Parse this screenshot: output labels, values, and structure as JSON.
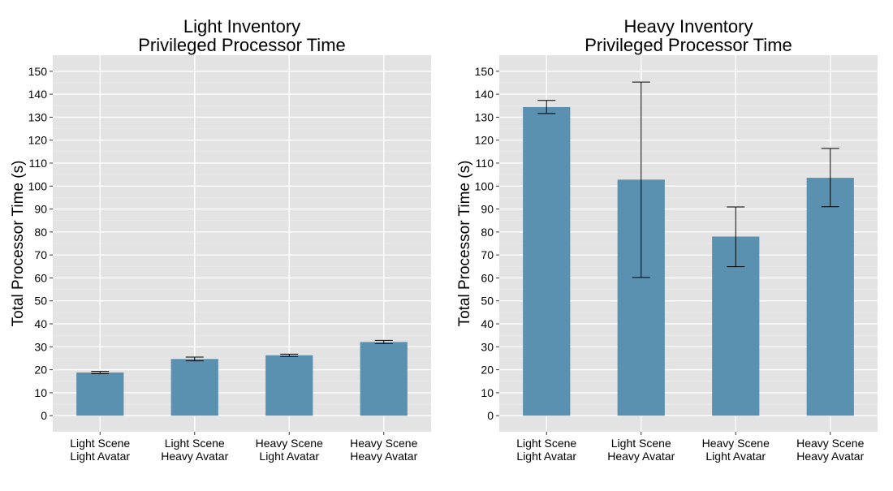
{
  "chart_data": [
    {
      "type": "bar",
      "title": [
        "Light Inventory",
        "Privileged Processor Time"
      ],
      "ylabel": "Total Processor Time (s)",
      "xlabel": "",
      "ylim": [
        -7,
        157
      ],
      "yticks": [
        0,
        10,
        20,
        30,
        40,
        50,
        60,
        70,
        80,
        90,
        100,
        110,
        120,
        130,
        140,
        150
      ],
      "categories": [
        [
          "Light Scene",
          "Light Avatar"
        ],
        [
          "Light Scene",
          "Heavy Avatar"
        ],
        [
          "Heavy Scene",
          "Light Avatar"
        ],
        [
          "Heavy Scene",
          "Heavy Avatar"
        ]
      ],
      "values": [
        18.8,
        24.7,
        26.3,
        32.1
      ],
      "error_low": [
        18.3,
        23.9,
        25.8,
        31.4
      ],
      "error_high": [
        19.3,
        25.5,
        26.8,
        32.8
      ],
      "grid": true
    },
    {
      "type": "bar",
      "title": [
        "Heavy Inventory",
        "Privileged Processor Time"
      ],
      "ylabel": "Total Processor Time (s)",
      "xlabel": "",
      "ylim": [
        -7,
        157
      ],
      "yticks": [
        0,
        10,
        20,
        30,
        40,
        50,
        60,
        70,
        80,
        90,
        100,
        110,
        120,
        130,
        140,
        150
      ],
      "categories": [
        [
          "Light Scene",
          "Light Avatar"
        ],
        [
          "Light Scene",
          "Heavy Avatar"
        ],
        [
          "Heavy Scene",
          "Light Avatar"
        ],
        [
          "Heavy Scene",
          "Heavy Avatar"
        ]
      ],
      "values": [
        134.4,
        102.8,
        78.0,
        103.6
      ],
      "error_low": [
        131.6,
        60.2,
        64.9,
        91.0
      ],
      "error_high": [
        137.3,
        145.3,
        90.9,
        116.4
      ],
      "grid": true
    }
  ],
  "colors": {
    "bar": "#5b91b0",
    "panel": "#e3e3e3",
    "grid": "#ffffff",
    "error": "#000000"
  }
}
